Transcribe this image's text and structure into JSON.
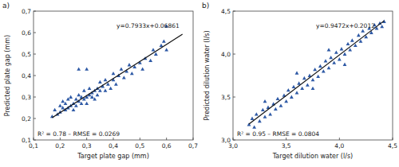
{
  "chart_data": [
    {
      "type": "scatter",
      "panel_label": "a)",
      "x_label": "Target plate gap (mm)",
      "y_label": "Predicted plate gap (mm)",
      "equation": "y=0.7933x+0.06861",
      "stats": "R² = 0.78  –  RMSE = 0.0269",
      "grid": false,
      "xlim": [
        0.1,
        0.7
      ],
      "ylim": [
        0.1,
        0.7
      ],
      "xticks": [
        {
          "value": 0.1,
          "label": "0,1"
        },
        {
          "value": 0.2,
          "label": "0,2"
        },
        {
          "value": 0.3,
          "label": "0,3"
        },
        {
          "value": 0.4,
          "label": "0,4"
        },
        {
          "value": 0.5,
          "label": "0,5"
        },
        {
          "value": 0.6,
          "label": "0,6"
        },
        {
          "value": 0.7,
          "label": "0,7"
        }
      ],
      "yticks": [
        {
          "value": 0.1,
          "label": "0,1"
        },
        {
          "value": 0.2,
          "label": "0,2"
        },
        {
          "value": 0.3,
          "label": "0,3"
        },
        {
          "value": 0.4,
          "label": "0,4"
        },
        {
          "value": 0.5,
          "label": "0,5"
        },
        {
          "value": 0.6,
          "label": "0,6"
        },
        {
          "value": 0.7,
          "label": "0,7"
        }
      ],
      "series": [
        {
          "type": "scatter",
          "marker": "triangle",
          "color": "#2f5aa6",
          "x": [
            0.17,
            0.18,
            0.19,
            0.2,
            0.2,
            0.21,
            0.21,
            0.22,
            0.22,
            0.23,
            0.23,
            0.24,
            0.24,
            0.25,
            0.25,
            0.26,
            0.26,
            0.27,
            0.27,
            0.28,
            0.28,
            0.29,
            0.29,
            0.3,
            0.3,
            0.31,
            0.31,
            0.32,
            0.32,
            0.33,
            0.33,
            0.34,
            0.34,
            0.35,
            0.35,
            0.36,
            0.37,
            0.37,
            0.38,
            0.39,
            0.4,
            0.4,
            0.41,
            0.42,
            0.43,
            0.44,
            0.45,
            0.46,
            0.47,
            0.48,
            0.5,
            0.51,
            0.52,
            0.54,
            0.55,
            0.56,
            0.58,
            0.59,
            0.6,
            0.6,
            0.27,
            0.3
          ],
          "values": [
            0.21,
            0.24,
            0.22,
            0.26,
            0.23,
            0.25,
            0.28,
            0.24,
            0.27,
            0.25,
            0.29,
            0.26,
            0.3,
            0.27,
            0.24,
            0.29,
            0.26,
            0.28,
            0.31,
            0.27,
            0.3,
            0.29,
            0.33,
            0.3,
            0.27,
            0.31,
            0.34,
            0.3,
            0.32,
            0.33,
            0.29,
            0.34,
            0.31,
            0.33,
            0.37,
            0.35,
            0.33,
            0.38,
            0.36,
            0.34,
            0.38,
            0.41,
            0.36,
            0.4,
            0.43,
            0.39,
            0.42,
            0.45,
            0.41,
            0.44,
            0.46,
            0.43,
            0.48,
            0.47,
            0.52,
            0.5,
            0.54,
            0.56,
            0.52,
            0.63,
            0.43,
            0.43
          ]
        },
        {
          "type": "line",
          "line_style": "solid",
          "color": "#111111",
          "x": [
            0.17,
            0.66
          ],
          "values": [
            0.2035,
            0.5922
          ]
        }
      ]
    },
    {
      "type": "scatter",
      "panel_label": "b)",
      "x_label": "Target dilution water (l/s)",
      "y_label": "Predicted dilution water (l/s)",
      "equation": "y=0.9472x+0.2012",
      "stats": "R² = 0.95  –  RMSE = 0.0804",
      "grid": false,
      "xlim": [
        3.0,
        4.5
      ],
      "ylim": [
        3.0,
        4.5
      ],
      "xticks": [
        {
          "value": 3.0,
          "label": "3,0"
        },
        {
          "value": 3.5,
          "label": "3,5"
        },
        {
          "value": 4.0,
          "label": "4,0"
        },
        {
          "value": 4.5,
          "label": "4,5"
        }
      ],
      "yticks": [
        {
          "value": 3.0,
          "label": "3,0"
        },
        {
          "value": 3.5,
          "label": "3,5"
        },
        {
          "value": 4.0,
          "label": "4,0"
        },
        {
          "value": 4.5,
          "label": "4,5"
        }
      ],
      "series": [
        {
          "type": "scatter",
          "marker": "triangle",
          "color": "#2f5aa6",
          "x": [
            3.15,
            3.18,
            3.2,
            3.22,
            3.25,
            3.28,
            3.3,
            3.33,
            3.35,
            3.38,
            3.4,
            3.42,
            3.45,
            3.48,
            3.5,
            3.52,
            3.55,
            3.57,
            3.6,
            3.62,
            3.65,
            3.67,
            3.7,
            3.72,
            3.75,
            3.77,
            3.8,
            3.82,
            3.85,
            3.87,
            3.9,
            3.92,
            3.95,
            3.97,
            4.0,
            4.02,
            4.05,
            4.08,
            4.1,
            4.12,
            4.15,
            4.18,
            4.2,
            4.22,
            4.25,
            4.28,
            4.3,
            4.33,
            4.35,
            4.38,
            4.4,
            4.42,
            3.6,
            3.9,
            4.05,
            3.3,
            3.75
          ],
          "values": [
            3.18,
            3.25,
            3.15,
            3.3,
            3.22,
            3.35,
            3.27,
            3.38,
            3.3,
            3.42,
            3.36,
            3.48,
            3.4,
            3.52,
            3.45,
            3.58,
            3.5,
            3.62,
            3.55,
            3.66,
            3.6,
            3.72,
            3.64,
            3.75,
            3.7,
            3.82,
            3.74,
            3.86,
            3.8,
            3.92,
            3.84,
            3.96,
            3.9,
            4.02,
            3.94,
            4.06,
            4.0,
            4.12,
            4.05,
            4.16,
            4.1,
            4.22,
            4.15,
            4.27,
            4.2,
            4.3,
            4.25,
            4.34,
            4.3,
            4.36,
            4.32,
            4.38,
            3.78,
            4.05,
            3.88,
            3.45,
            3.6
          ]
        },
        {
          "type": "line",
          "line_style": "solid",
          "color": "#111111",
          "x": [
            3.15,
            4.42
          ],
          "values": [
            3.1849,
            4.3878
          ]
        }
      ]
    }
  ]
}
